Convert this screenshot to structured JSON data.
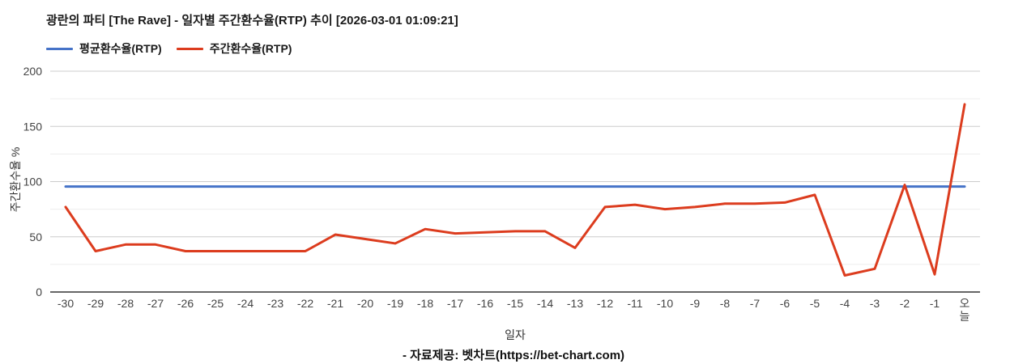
{
  "caption": "- 자료제공: 벳차트(https://bet-chart.com)",
  "chart_data": {
    "type": "line",
    "title": "광란의 파티 [The Rave] - 일자별 주간환수율(RTP) 추이 [2026-03-01 01:09:21]",
    "xlabel": "일자",
    "ylabel": "주간환수율 %",
    "ylim": [
      0,
      200
    ],
    "yticks": [
      0,
      50,
      100,
      150,
      200
    ],
    "minor_grid_step": 25,
    "grid": true,
    "legend_position": "top-left",
    "categories": [
      "-30",
      "-29",
      "-28",
      "-27",
      "-26",
      "-25",
      "-24",
      "-23",
      "-22",
      "-21",
      "-20",
      "-19",
      "-18",
      "-17",
      "-16",
      "-15",
      "-14",
      "-13",
      "-12",
      "-11",
      "-10",
      "-9",
      "-8",
      "-7",
      "-6",
      "-5",
      "-4",
      "-3",
      "-2",
      "-1",
      "오늘"
    ],
    "series": [
      {
        "id": "average-rtp",
        "name": "평균환수율(RTP)",
        "color": "#4673c8",
        "constant_value": 95.5
      },
      {
        "id": "weekly-rtp",
        "name": "주간환수율(RTP)",
        "color": "#dc3c1e",
        "values": [
          77,
          37,
          43,
          43,
          37,
          37,
          37,
          37,
          37,
          52,
          48,
          44,
          57,
          53,
          54,
          55,
          55,
          40,
          77,
          79,
          75,
          77,
          80,
          80,
          81,
          88,
          15,
          21,
          97,
          16,
          170
        ]
      }
    ]
  }
}
